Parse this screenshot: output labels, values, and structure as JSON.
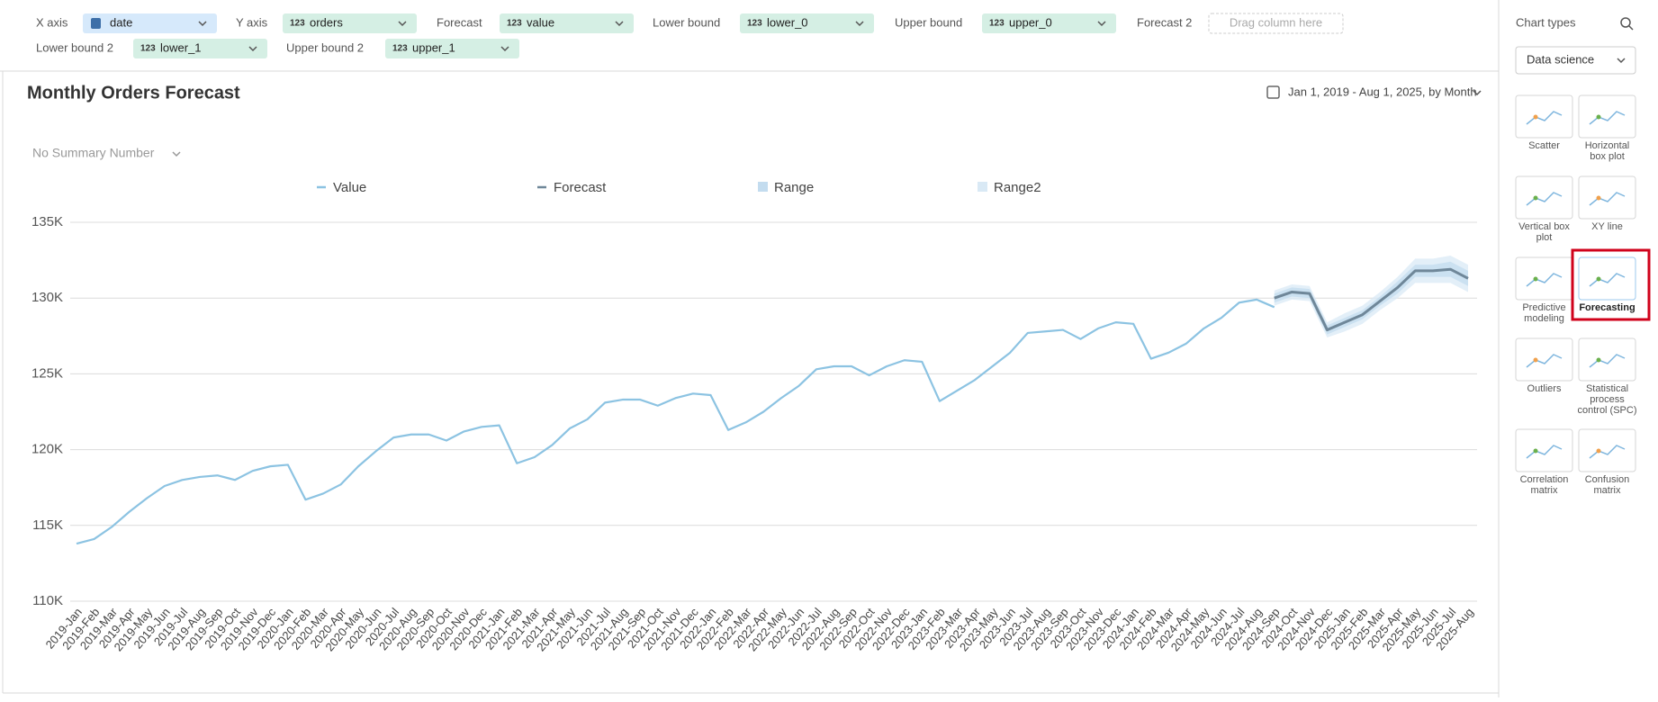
{
  "toolbar": {
    "fields": [
      {
        "label": "X axis",
        "value": "date"
      },
      {
        "label": "Y axis",
        "icon": "123",
        "value": "orders"
      },
      {
        "label": "Forecast",
        "icon": "123",
        "value": "value"
      },
      {
        "label": "Lower bound",
        "icon": "123",
        "value": "lower_0"
      },
      {
        "label": "Upper bound",
        "icon": "123",
        "value": "upper_0"
      },
      {
        "label": "Forecast 2",
        "placeholder": "Drag column here"
      },
      {
        "label": "Lower bound 2",
        "icon": "123",
        "value": "lower_1"
      },
      {
        "label": "Upper bound 2",
        "icon": "123",
        "value": "upper_1"
      }
    ]
  },
  "date_range": "Jan 1, 2019 - Aug 1, 2025, by Month",
  "summary": "No Summary Number",
  "chart_data": {
    "type": "line",
    "title": "Monthly Orders Forecast",
    "categories": [
      "2019-Jan",
      "2019-Feb",
      "2019-Mar",
      "2019-Apr",
      "2019-May",
      "2019-Jun",
      "2019-Jul",
      "2019-Aug",
      "2019-Sep",
      "2019-Oct",
      "2019-Nov",
      "2019-Dec",
      "2020-Jan",
      "2020-Feb",
      "2020-Mar",
      "2020-Apr",
      "2020-May",
      "2020-Jun",
      "2020-Jul",
      "2020-Aug",
      "2020-Sep",
      "2020-Oct",
      "2020-Nov",
      "2020-Dec",
      "2021-Jan",
      "2021-Feb",
      "2021-Mar",
      "2021-Apr",
      "2021-May",
      "2021-Jun",
      "2021-Jul",
      "2021-Aug",
      "2021-Sep",
      "2021-Oct",
      "2021-Nov",
      "2021-Dec",
      "2022-Jan",
      "2022-Feb",
      "2022-Mar",
      "2022-Apr",
      "2022-May",
      "2022-Jun",
      "2022-Jul",
      "2022-Aug",
      "2022-Sep",
      "2022-Oct",
      "2022-Nov",
      "2022-Dec",
      "2023-Jan",
      "2023-Feb",
      "2023-Mar",
      "2023-Apr",
      "2023-May",
      "2023-Jun",
      "2023-Jul",
      "2023-Aug",
      "2023-Sep",
      "2023-Oct",
      "2023-Nov",
      "2023-Dec",
      "2024-Jan",
      "2024-Feb",
      "2024-Mar",
      "2024-Apr",
      "2024-May",
      "2024-Jun",
      "2024-Jul",
      "2024-Aug",
      "2024-Sep",
      "2024-Oct",
      "2024-Nov",
      "2024-Dec",
      "2025-Jan",
      "2025-Feb",
      "2025-Mar",
      "2025-Apr",
      "2025-May",
      "2025-Jun",
      "2025-Jul",
      "2025-Aug"
    ],
    "series": [
      {
        "name": "Value",
        "color": "#8cc3e2",
        "values": [
          113800,
          114100,
          114900,
          115900,
          116800,
          117600,
          118000,
          118200,
          118300,
          118000,
          118600,
          118900,
          119000,
          116700,
          117100,
          117700,
          118900,
          119900,
          120800,
          121000,
          121000,
          120600,
          121200,
          121500,
          121600,
          119100,
          119500,
          120300,
          121400,
          122000,
          123100,
          123300,
          123300,
          122900,
          123400,
          123700,
          123600,
          121300,
          121800,
          122500,
          123400,
          124200,
          125300,
          125500,
          125500,
          124900,
          125500,
          125900,
          125800,
          123200,
          123900,
          124600,
          125500,
          126400,
          127700,
          127800,
          127900,
          127300,
          128000,
          128400,
          128300,
          126000,
          126400,
          127000,
          128000,
          128700,
          129700,
          129900,
          129400,
          null,
          null,
          null,
          null,
          null,
          null,
          null,
          null,
          null,
          null,
          null
        ]
      },
      {
        "name": "Forecast",
        "color": "#6f8799",
        "values": [
          null,
          null,
          null,
          null,
          null,
          null,
          null,
          null,
          null,
          null,
          null,
          null,
          null,
          null,
          null,
          null,
          null,
          null,
          null,
          null,
          null,
          null,
          null,
          null,
          null,
          null,
          null,
          null,
          null,
          null,
          null,
          null,
          null,
          null,
          null,
          null,
          null,
          null,
          null,
          null,
          null,
          null,
          null,
          null,
          null,
          null,
          null,
          null,
          null,
          null,
          null,
          null,
          null,
          null,
          null,
          null,
          null,
          null,
          null,
          null,
          null,
          null,
          null,
          null,
          null,
          null,
          null,
          null,
          130000,
          130400,
          130300,
          127900,
          128400,
          128900,
          129800,
          130700,
          131800,
          131800,
          131900,
          131300
        ]
      },
      {
        "name": "Range",
        "color": "#c3dcef",
        "lower": [
          null,
          null,
          null,
          null,
          null,
          null,
          null,
          null,
          null,
          null,
          null,
          null,
          null,
          null,
          null,
          null,
          null,
          null,
          null,
          null,
          null,
          null,
          null,
          null,
          null,
          null,
          null,
          null,
          null,
          null,
          null,
          null,
          null,
          null,
          null,
          null,
          null,
          null,
          null,
          null,
          null,
          null,
          null,
          null,
          null,
          null,
          null,
          null,
          null,
          null,
          null,
          null,
          null,
          null,
          null,
          null,
          null,
          null,
          null,
          null,
          null,
          null,
          null,
          null,
          null,
          null,
          null,
          null,
          129700,
          130100,
          130000,
          127600,
          128100,
          128600,
          129500,
          130300,
          131400,
          131400,
          131400,
          130800
        ],
        "upper": [
          null,
          null,
          null,
          null,
          null,
          null,
          null,
          null,
          null,
          null,
          null,
          null,
          null,
          null,
          null,
          null,
          null,
          null,
          null,
          null,
          null,
          null,
          null,
          null,
          null,
          null,
          null,
          null,
          null,
          null,
          null,
          null,
          null,
          null,
          null,
          null,
          null,
          null,
          null,
          null,
          null,
          null,
          null,
          null,
          null,
          null,
          null,
          null,
          null,
          null,
          null,
          null,
          null,
          null,
          null,
          null,
          null,
          null,
          null,
          null,
          null,
          null,
          null,
          null,
          null,
          null,
          null,
          null,
          130300,
          130700,
          130600,
          128200,
          128700,
          129200,
          130100,
          131100,
          132200,
          132200,
          132400,
          131800
        ]
      },
      {
        "name": "Range2",
        "color": "#d9e9f5",
        "lower": [
          null,
          null,
          null,
          null,
          null,
          null,
          null,
          null,
          null,
          null,
          null,
          null,
          null,
          null,
          null,
          null,
          null,
          null,
          null,
          null,
          null,
          null,
          null,
          null,
          null,
          null,
          null,
          null,
          null,
          null,
          null,
          null,
          null,
          null,
          null,
          null,
          null,
          null,
          null,
          null,
          null,
          null,
          null,
          null,
          null,
          null,
          null,
          null,
          null,
          null,
          null,
          null,
          null,
          null,
          null,
          null,
          null,
          null,
          null,
          null,
          null,
          null,
          null,
          null,
          null,
          null,
          null,
          null,
          129500,
          129900,
          129800,
          127400,
          127800,
          128300,
          129200,
          130000,
          131000,
          131000,
          131000,
          130400
        ],
        "upper": [
          null,
          null,
          null,
          null,
          null,
          null,
          null,
          null,
          null,
          null,
          null,
          null,
          null,
          null,
          null,
          null,
          null,
          null,
          null,
          null,
          null,
          null,
          null,
          null,
          null,
          null,
          null,
          null,
          null,
          null,
          null,
          null,
          null,
          null,
          null,
          null,
          null,
          null,
          null,
          null,
          null,
          null,
          null,
          null,
          null,
          null,
          null,
          null,
          null,
          null,
          null,
          null,
          null,
          null,
          null,
          null,
          null,
          null,
          null,
          null,
          null,
          null,
          null,
          null,
          null,
          null,
          null,
          null,
          130500,
          130900,
          130800,
          128400,
          129000,
          129500,
          130400,
          131400,
          132600,
          132600,
          132800,
          132200
        ]
      }
    ],
    "ylim": [
      110000,
      135000
    ],
    "yticks": [
      {
        "value": 110000,
        "label": "110K"
      },
      {
        "value": 115000,
        "label": "115K"
      },
      {
        "value": 120000,
        "label": "120K"
      },
      {
        "value": 125000,
        "label": "125K"
      },
      {
        "value": 130000,
        "label": "130K"
      },
      {
        "value": 135000,
        "label": "135K"
      }
    ],
    "grid": true
  },
  "sidebar": {
    "title": "Chart types",
    "selector": "Data science",
    "items": [
      {
        "lines": [
          "Scatter"
        ]
      },
      {
        "lines": [
          "Horizontal",
          "box plot"
        ]
      },
      {
        "lines": [
          "Vertical box",
          "plot"
        ]
      },
      {
        "lines": [
          "XY line"
        ]
      },
      {
        "lines": [
          "Predictive",
          "modeling"
        ]
      },
      {
        "lines": [
          "Forecasting"
        ],
        "selected": true
      },
      {
        "lines": [
          "Outliers"
        ]
      },
      {
        "lines": [
          "Statistical",
          "process",
          "control (SPC)"
        ]
      },
      {
        "lines": [
          "Correlation",
          "matrix"
        ]
      },
      {
        "lines": [
          "Confusion",
          "matrix"
        ]
      }
    ]
  }
}
